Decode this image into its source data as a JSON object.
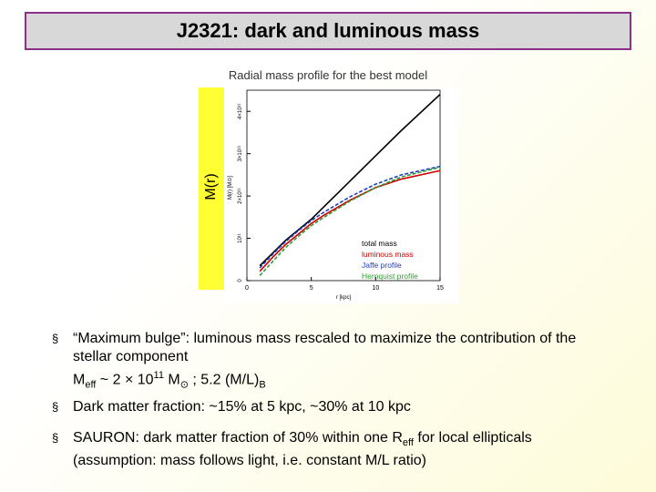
{
  "title": "J2321: dark and luminous mass",
  "figure": {
    "caption": "Radial mass profile for the best model",
    "side_label": "M(r)",
    "chart": {
      "type": "line",
      "xlabel": "r [kpc]",
      "ylabel": "M(r) [M⊙]",
      "x": [
        1,
        2,
        3,
        4,
        5,
        6,
        8,
        10,
        12,
        15
      ],
      "xlim": [
        0,
        15
      ],
      "xticks": [
        0,
        5,
        10,
        15
      ],
      "ylim": [
        0,
        450000000000
      ],
      "yticks": [
        0,
        {
          "value": 100000000000,
          "label": "10¹¹"
        },
        {
          "value": 200000000000,
          "label": "2×10¹¹"
        },
        {
          "value": 300000000000,
          "label": "3×10¹¹"
        },
        {
          "value": 400000000000,
          "label": "4×10¹¹"
        }
      ],
      "series": [
        {
          "name": "total mass",
          "color": "#000000",
          "dash": false,
          "values": [
            35000000000,
            65000000000,
            95000000000,
            120000000000,
            145000000000,
            175000000000,
            235000000000,
            295000000000,
            355000000000,
            440000000000
          ]
        },
        {
          "name": "luminous mass",
          "color": "#d00000",
          "dash": false,
          "values": [
            22000000000,
            55000000000,
            85000000000,
            110000000000,
            135000000000,
            155000000000,
            190000000000,
            220000000000,
            240000000000,
            260000000000
          ]
        },
        {
          "name": "Jaffe profile",
          "color": "#1f3fbf",
          "dash": true,
          "values": [
            30000000000,
            62000000000,
            92000000000,
            118000000000,
            142000000000,
            162000000000,
            198000000000,
            228000000000,
            250000000000,
            270000000000
          ]
        },
        {
          "name": "Hernquist profile",
          "color": "#2e9e2e",
          "dash": true,
          "values": [
            12000000000,
            45000000000,
            78000000000,
            105000000000,
            130000000000,
            150000000000,
            188000000000,
            220000000000,
            245000000000,
            268000000000
          ]
        }
      ]
    }
  },
  "bullets": [
    {
      "marker": "§",
      "lines": [
        [
          "“Maximum bulge”: luminous mass rescaled to maximize the contribution of the stellar component"
        ],
        [
          "M",
          "eff",
          " ~ 2 × 10",
          "11",
          " M",
          "⊙",
          " ; 5.2 (M/L)",
          "B"
        ]
      ]
    },
    {
      "marker": "§",
      "lines": [
        [
          "Dark matter fraction: ~15% at 5 kpc, ~30% at 10 kpc"
        ]
      ]
    },
    {
      "marker": "§",
      "lines": [
        [
          "SAURON: dark matter fraction of 30% within one R",
          "eff",
          " for local ellipticals (assumption: mass follows light, i.e. constant M/L ratio)"
        ]
      ]
    }
  ]
}
